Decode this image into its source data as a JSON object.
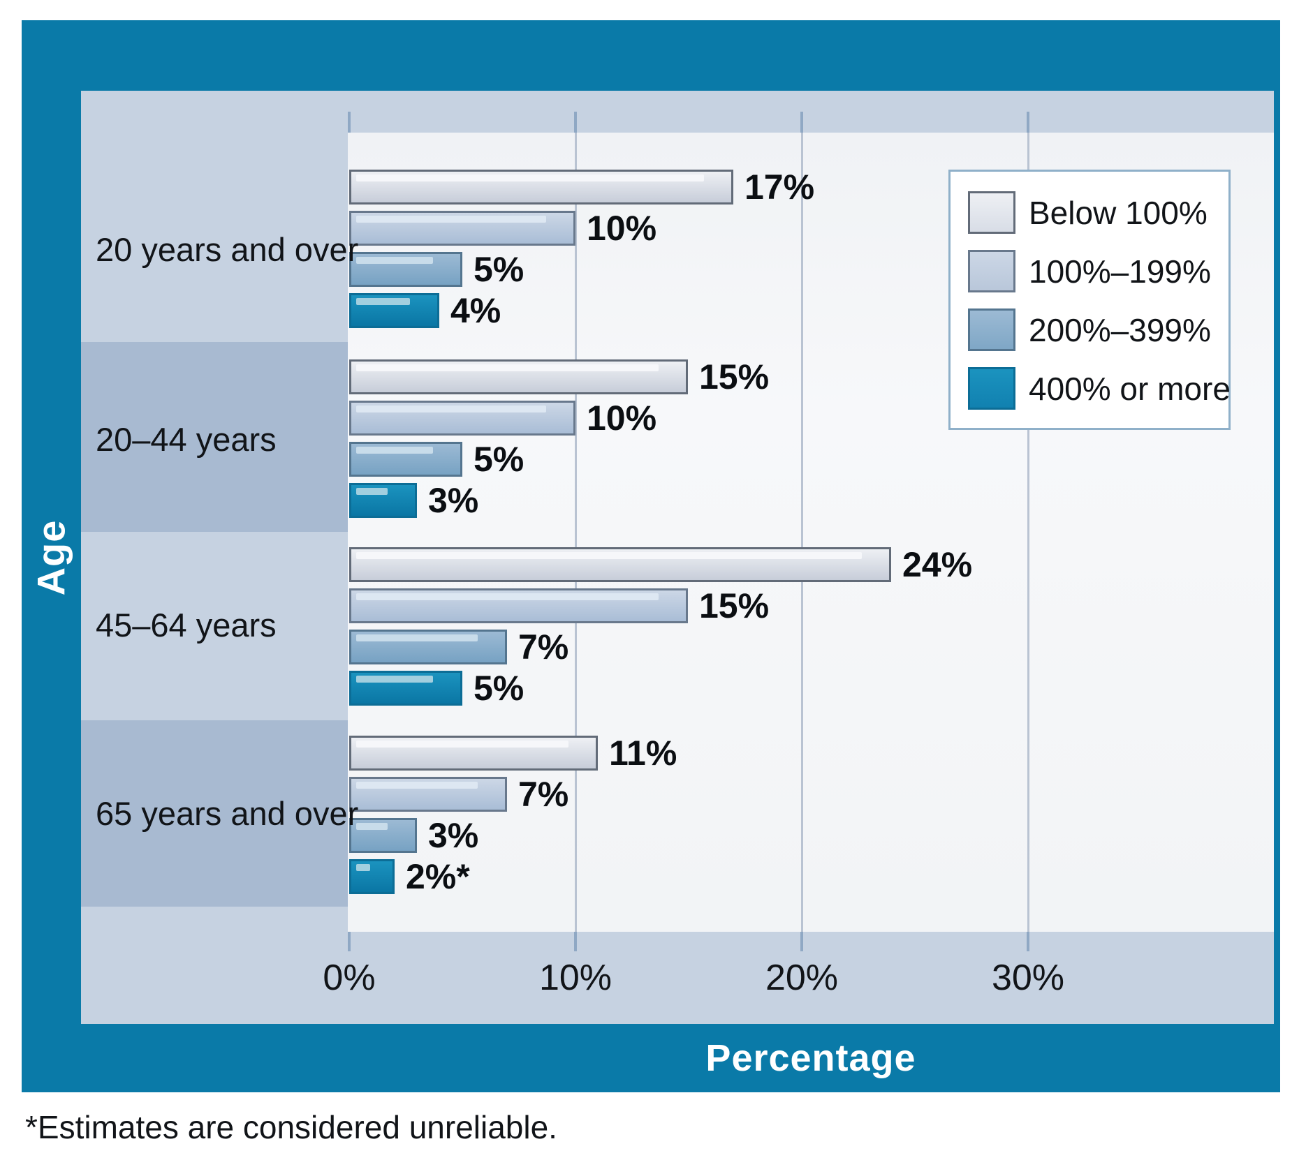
{
  "colors": {
    "frame_teal": "#0a7aa8",
    "band_light": "#c6d2e1",
    "band_dark": "#a8bad1",
    "plot_background": "#f4f5f7",
    "gridline": "#b9c3d2",
    "tick": "#8fa8c4",
    "legend_border": "#8fb0c9",
    "text": "#111418",
    "axis_title_text": "#ffffff"
  },
  "chart_data": {
    "type": "bar",
    "orientation": "horizontal",
    "title": "",
    "xlabel": "Percentage",
    "ylabel": "Age",
    "xlim": [
      0,
      41
    ],
    "x_tick_labels": [
      "0%",
      "10%",
      "20%",
      "30%"
    ],
    "x_tick_values": [
      0,
      10,
      20,
      30
    ],
    "grid": "vertical gridlines at 10%, 20%, 30%",
    "legend_position": "inside-top-right",
    "categories": [
      "20 years and over",
      "20–44 years",
      "45–64 years",
      "65 years and over"
    ],
    "series": [
      {
        "name": "Below 100%",
        "values": [
          17,
          15,
          24,
          11
        ],
        "labels": [
          "17%",
          "15%",
          "24%",
          "11%"
        ],
        "fill_top": "#eef0f4",
        "fill_bottom": "#c7cdd9",
        "highlight": "#f6f7fa",
        "border": "#626b78",
        "swatch": "#d8dde6"
      },
      {
        "name": "100%–199%",
        "values": [
          10,
          10,
          15,
          7
        ],
        "labels": [
          "10%",
          "10%",
          "15%",
          "7%"
        ],
        "fill_top": "#ccd7e6",
        "fill_bottom": "#a9bdd6",
        "highlight": "#dde7f2",
        "border": "#68788c",
        "swatch": "#b9c7da"
      },
      {
        "name": "200%–399%",
        "values": [
          5,
          5,
          7,
          3
        ],
        "labels": [
          "5%",
          "5%",
          "7%",
          "3%"
        ],
        "fill_top": "#9cbad4",
        "fill_bottom": "#77a2c3",
        "highlight": "#c8dcea",
        "border": "#54758f",
        "swatch": "#7fa7c6"
      },
      {
        "name": "400% or more",
        "values": [
          4,
          3,
          5,
          2
        ],
        "labels": [
          "4%",
          "3%",
          "5%",
          "2%*"
        ],
        "fill_top": "#1b93bf",
        "fill_bottom": "#0a76a4",
        "highlight": "#a3cfdf",
        "border": "#0c6d96",
        "swatch": "#1181b0"
      }
    ]
  },
  "legend": {
    "items": [
      "Below 100%",
      "100%–199%",
      "200%–399%",
      "400% or more"
    ]
  },
  "axis": {
    "x_title": "Percentage",
    "y_title": "Age"
  },
  "footnote": "*Estimates are considered unreliable."
}
